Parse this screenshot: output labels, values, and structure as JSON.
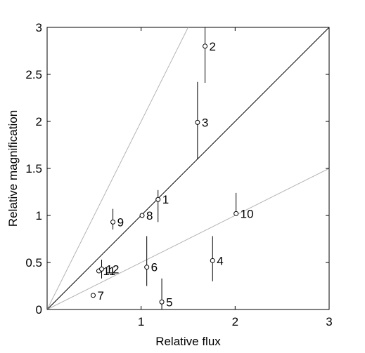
{
  "chart_data": {
    "type": "scatter",
    "xlabel": "Relative flux",
    "ylabel": "Relative magnification",
    "xlim": [
      0,
      3
    ],
    "ylim": [
      0,
      3
    ],
    "xticks": [
      "1",
      "2",
      "3"
    ],
    "yticks": [
      "0",
      "0.5",
      "1",
      "1.5",
      "2",
      "2.5",
      "3"
    ],
    "grid": false,
    "reference_lines": [
      {
        "slope": 2,
        "color": "#b4b4b4"
      },
      {
        "slope": 1,
        "color": "#000000"
      },
      {
        "slope": 0.5,
        "color": "#b4b4b4"
      }
    ],
    "points": [
      {
        "label": "1",
        "x": 1.18,
        "y": 1.17,
        "err": [
          0.93,
          1.27
        ]
      },
      {
        "label": "2",
        "x": 1.68,
        "y": 2.8,
        "err": [
          2.41,
          3.0
        ]
      },
      {
        "label": "3",
        "x": 1.6,
        "y": 1.99,
        "err": [
          1.6,
          2.42
        ]
      },
      {
        "label": "4",
        "x": 1.76,
        "y": 0.52,
        "err": [
          0.3,
          0.78
        ]
      },
      {
        "label": "5",
        "x": 1.22,
        "y": 0.08,
        "err": [
          0.0,
          0.33
        ]
      },
      {
        "label": "6",
        "x": 1.06,
        "y": 0.45,
        "err": [
          0.25,
          0.78
        ]
      },
      {
        "label": "7",
        "x": 0.49,
        "y": 0.15,
        "err": null
      },
      {
        "label": "8",
        "x": 1.01,
        "y": 1.0,
        "err": null
      },
      {
        "label": "9",
        "x": 0.7,
        "y": 0.93,
        "err": [
          0.85,
          1.07
        ]
      },
      {
        "label": "10",
        "x": 2.01,
        "y": 1.02,
        "err": [
          1.0,
          1.24
        ]
      },
      {
        "label": "11",
        "x": 0.55,
        "y": 0.41,
        "err": null
      },
      {
        "label": "12",
        "x": 0.58,
        "y": 0.43,
        "err": [
          0.33,
          0.53
        ]
      }
    ]
  }
}
